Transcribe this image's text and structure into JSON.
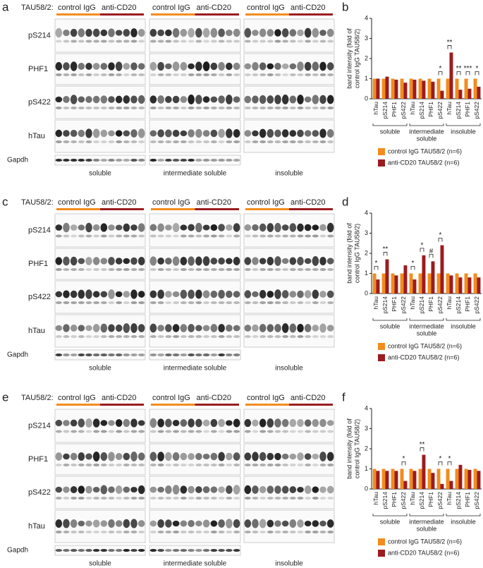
{
  "figure": {
    "panels": [
      {
        "letter": "a",
        "header": "TAU58/2:",
        "rows": [
          "pS214",
          "PHF1",
          "pS422",
          "hTau",
          "Gapdh"
        ],
        "fractions": [
          {
            "label": "soluble",
            "control": "control IgG",
            "treated": "anti-CD20"
          },
          {
            "label": "intermediate soluble",
            "control": "control IgG",
            "treated": "anti-CD20"
          },
          {
            "label": "insoluble",
            "control": "control IgG",
            "treated": "anti-CD20"
          }
        ]
      },
      {
        "letter": "c",
        "header": "TAU58/2:",
        "rows": [
          "pS214",
          "PHF1",
          "pS422",
          "hTau",
          "Gapdh"
        ],
        "fractions": [
          {
            "label": "soluble",
            "control": "control IgG",
            "treated": "anti-CD20"
          },
          {
            "label": "intermediate soluble",
            "control": "control IgG",
            "treated": "anti-CD20"
          },
          {
            "label": "insoluble",
            "control": "control IgG",
            "treated": "anti-CD20"
          }
        ]
      },
      {
        "letter": "e",
        "header": "TAU58/2:",
        "rows": [
          "pS214",
          "PHF1",
          "pS422",
          "hTau",
          "Gapdh"
        ],
        "fractions": [
          {
            "label": "soluble",
            "control": "control IgG",
            "treated": "anti-CD20"
          },
          {
            "label": "intermediate soluble",
            "control": "control IgG",
            "treated": "anti-CD20"
          },
          {
            "label": "insoluble",
            "control": "control IgG",
            "treated": "anti-CD20"
          }
        ]
      }
    ]
  },
  "chart_data": [
    {
      "type": "bar",
      "letter": "b",
      "y_label": [
        "band intensity (fold of",
        "control IgG TAU58/2)"
      ],
      "categories": [
        "hTau",
        "pS214",
        "PHF1",
        "pS422",
        "hTau",
        "pS214",
        "PHF1",
        "pS422",
        "hTau",
        "pS214",
        "PHF1",
        "pS422"
      ],
      "groups": [
        [
          "soluble"
        ],
        [
          "intermediate",
          "soluble"
        ],
        [
          "insoluble"
        ]
      ],
      "series": [
        {
          "name": "control IgG TAU58/2 (n=6)",
          "color": "#f28c1e",
          "values": [
            1,
            1,
            1,
            1,
            1,
            1,
            1,
            1,
            1,
            1,
            1,
            1
          ]
        },
        {
          "name": "anti-CD20 TAU58/2 (n=6)",
          "color": "#9b1c20",
          "values": [
            1.0,
            1.1,
            0.95,
            0.8,
            0.95,
            0.9,
            0.85,
            0.4,
            2.3,
            0.45,
            0.5,
            0.6
          ]
        }
      ],
      "significance": [
        null,
        null,
        null,
        null,
        null,
        null,
        null,
        "*",
        "**",
        "**",
        "***",
        "*"
      ],
      "ylim": [
        0,
        4
      ],
      "yticks": [
        0,
        1,
        2,
        3,
        4
      ]
    },
    {
      "type": "bar",
      "letter": "d",
      "y_label": [
        "band intensity (fold of",
        "control IgG TAU58/2)"
      ],
      "categories": [
        "hTau",
        "pS214",
        "PHF1",
        "pS422",
        "hTau",
        "pS214",
        "PHF1",
        "pS422",
        "hTau",
        "pS214",
        "PHF1",
        "pS422"
      ],
      "groups": [
        [
          "soluble"
        ],
        [
          "intermediate",
          "soluble"
        ],
        [
          "insoluble"
        ]
      ],
      "series": [
        {
          "name": "control IgG TAU58/2 (n=6)",
          "color": "#f28c1e",
          "values": [
            1,
            1,
            1,
            1,
            1,
            1,
            1,
            1,
            1,
            1,
            1,
            1
          ]
        },
        {
          "name": "anti-CD20 TAU58/2 (n=6)",
          "color": "#9b1c20",
          "values": [
            0.7,
            1.7,
            0.9,
            1.4,
            0.7,
            1.9,
            1.6,
            2.4,
            0.9,
            0.8,
            0.8,
            0.8
          ]
        }
      ],
      "significance": [
        "*",
        "**",
        null,
        null,
        "*",
        "*",
        "#",
        "*",
        null,
        null,
        null,
        null
      ],
      "ylim": [
        0,
        4
      ],
      "yticks": [
        0,
        1,
        2,
        3,
        4
      ]
    },
    {
      "type": "bar",
      "letter": "f",
      "y_label": [
        "band intensity (fold of",
        "control IgG TAU58/2)"
      ],
      "categories": [
        "hTau",
        "pS214",
        "PHF1",
        "pS422",
        "hTau",
        "pS214",
        "PHF1",
        "pS422",
        "hTau",
        "pS214",
        "PHF1",
        "pS422"
      ],
      "groups": [
        [
          "soluble"
        ],
        [
          "intermediate",
          "soluble"
        ],
        [
          "insoluble"
        ]
      ],
      "series": [
        {
          "name": "control IgG TAU58/2 (n=6)",
          "color": "#f28c1e",
          "values": [
            1,
            1,
            1,
            1,
            1,
            1,
            1,
            1,
            1,
            1,
            1,
            1
          ]
        },
        {
          "name": "anti-CD20 TAU58/2 (n=6)",
          "color": "#9b1c20",
          "values": [
            0.9,
            0.9,
            0.9,
            0.4,
            0.9,
            1.7,
            0.8,
            0.25,
            0.4,
            1.2,
            0.95,
            0.9
          ]
        }
      ],
      "significance": [
        null,
        null,
        null,
        "*",
        null,
        "**",
        null,
        "*",
        "*",
        null,
        null,
        null
      ],
      "ylim": [
        0,
        4
      ],
      "yticks": [
        0,
        1,
        2,
        3,
        4
      ]
    }
  ]
}
